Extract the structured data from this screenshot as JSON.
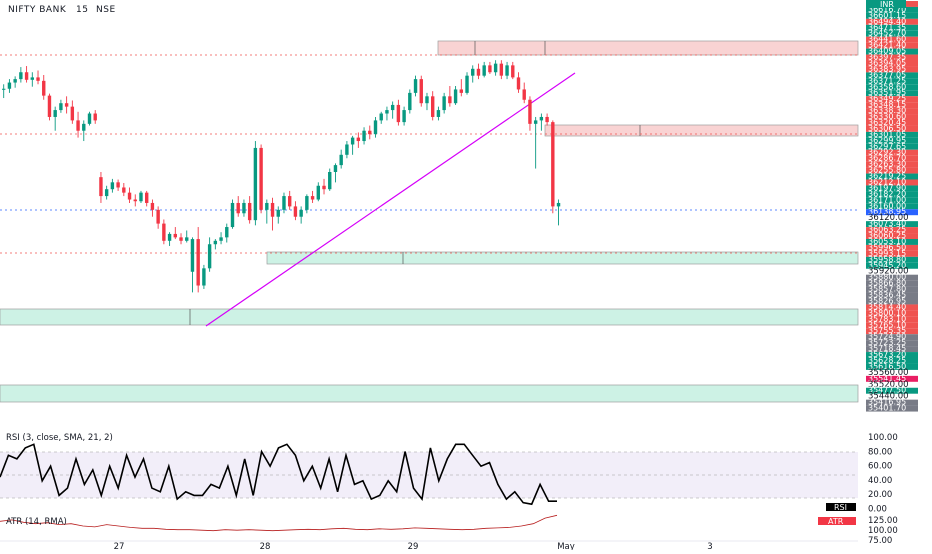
{
  "header": {
    "symbol": "NIFTY BANK",
    "interval": "15",
    "exchange": "NSE"
  },
  "chart_data": {
    "type": "candlestick",
    "price_range": [
      35400,
      36650
    ],
    "currency": "INR",
    "x_axis_labels": [
      "27",
      "28",
      "29",
      "May",
      "3"
    ],
    "candles": [
      [
        36389,
        36405,
        36365,
        36392
      ],
      [
        36392,
        36420,
        36380,
        36410
      ],
      [
        36410,
        36428,
        36395,
        36420
      ],
      [
        36420,
        36455,
        36410,
        36440
      ],
      [
        36440,
        36458,
        36410,
        36418
      ],
      [
        36418,
        36440,
        36398,
        36425
      ],
      [
        36425,
        36445,
        36405,
        36415
      ],
      [
        36415,
        36432,
        36360,
        36372
      ],
      [
        36372,
        36378,
        36300,
        36310
      ],
      [
        36310,
        36340,
        36270,
        36330
      ],
      [
        36330,
        36360,
        36322,
        36350
      ],
      [
        36350,
        36370,
        36320,
        36340
      ],
      [
        36340,
        36358,
        36290,
        36300
      ],
      [
        36300,
        36325,
        36250,
        36270
      ],
      [
        36270,
        36300,
        36240,
        36290
      ],
      [
        36290,
        36325,
        36285,
        36320
      ],
      [
        36320,
        36330,
        36290,
        36300
      ],
      [
        36135,
        36150,
        36060,
        36080
      ],
      [
        36080,
        36110,
        36070,
        36100
      ],
      [
        36100,
        36130,
        36090,
        36120
      ],
      [
        36120,
        36128,
        36095,
        36105
      ],
      [
        36105,
        36118,
        36080,
        36090
      ],
      [
        36090,
        36105,
        36060,
        36070
      ],
      [
        36070,
        36085,
        36050,
        36065
      ],
      [
        36065,
        36095,
        36060,
        36090
      ],
      [
        36090,
        36095,
        36050,
        36060
      ],
      [
        36060,
        36070,
        36020,
        36040
      ],
      [
        36040,
        36050,
        35985,
        36000
      ],
      [
        36000,
        36012,
        35940,
        35950
      ],
      [
        35950,
        35975,
        35935,
        35970
      ],
      [
        35970,
        35990,
        35955,
        35960
      ],
      [
        35960,
        35972,
        35940,
        35950
      ],
      [
        35950,
        35980,
        35945,
        35960
      ],
      [
        35860,
        35960,
        35800,
        35955
      ],
      [
        35955,
        35990,
        35800,
        35820
      ],
      [
        35820,
        35880,
        35810,
        35870
      ],
      [
        35870,
        35960,
        35860,
        35940
      ],
      [
        35940,
        35955,
        35925,
        35950
      ],
      [
        35950,
        35975,
        35940,
        35960
      ],
      [
        35960,
        36000,
        35945,
        35990
      ],
      [
        35990,
        36070,
        35985,
        36060
      ],
      [
        36060,
        36080,
        36020,
        36030
      ],
      [
        36030,
        36070,
        36020,
        36060
      ],
      [
        36060,
        36080,
        36000,
        36010
      ],
      [
        36010,
        36240,
        35995,
        36220
      ],
      [
        36220,
        36230,
        36030,
        36040
      ],
      [
        36040,
        36070,
        36000,
        36060
      ],
      [
        36060,
        36075,
        35980,
        36020
      ],
      [
        36020,
        36050,
        36000,
        36040
      ],
      [
        36040,
        36090,
        36030,
        36080
      ],
      [
        36080,
        36095,
        36040,
        36050
      ],
      [
        36050,
        36065,
        36010,
        36020
      ],
      [
        36020,
        36050,
        36000,
        36040
      ],
      [
        36040,
        36085,
        36030,
        36080
      ],
      [
        36080,
        36095,
        36060,
        36070
      ],
      [
        36070,
        36120,
        36065,
        36110
      ],
      [
        36110,
        36130,
        36085,
        36100
      ],
      [
        36100,
        36160,
        36095,
        36150
      ],
      [
        36150,
        36175,
        36120,
        36170
      ],
      [
        36170,
        36215,
        36160,
        36200
      ],
      [
        36200,
        36240,
        36190,
        36230
      ],
      [
        36230,
        36255,
        36200,
        36250
      ],
      [
        36250,
        36265,
        36220,
        36240
      ],
      [
        36240,
        36280,
        36230,
        36270
      ],
      [
        36270,
        36285,
        36245,
        36260
      ],
      [
        36260,
        36310,
        36250,
        36300
      ],
      [
        36300,
        36325,
        36290,
        36320
      ],
      [
        36320,
        36340,
        36300,
        36330
      ],
      [
        36330,
        36355,
        36305,
        36345
      ],
      [
        36345,
        36360,
        36285,
        36295
      ],
      [
        36295,
        36340,
        36285,
        36330
      ],
      [
        36330,
        36390,
        36320,
        36380
      ],
      [
        36380,
        36430,
        36370,
        36420
      ],
      [
        36420,
        36430,
        36340,
        36350
      ],
      [
        36350,
        36380,
        36330,
        36370
      ],
      [
        36370,
        36385,
        36300,
        36310
      ],
      [
        36310,
        36340,
        36300,
        36330
      ],
      [
        36330,
        36380,
        36320,
        36370
      ],
      [
        36370,
        36400,
        36340,
        36350
      ],
      [
        36350,
        36400,
        36345,
        36390
      ],
      [
        36390,
        36420,
        36370,
        36380
      ],
      [
        36380,
        36440,
        36375,
        36430
      ],
      [
        36430,
        36460,
        36410,
        36450
      ],
      [
        36450,
        36465,
        36420,
        36430
      ],
      [
        36430,
        36470,
        36425,
        36460
      ],
      [
        36460,
        36470,
        36435,
        36440
      ],
      [
        36440,
        36475,
        36430,
        36465
      ],
      [
        36465,
        36475,
        36420,
        36430
      ],
      [
        36430,
        36470,
        36420,
        36460
      ],
      [
        36460,
        36470,
        36420,
        36425
      ],
      [
        36425,
        36440,
        36380,
        36390
      ],
      [
        36390,
        36410,
        36350,
        36360
      ],
      [
        36360,
        36370,
        36270,
        36290
      ],
      [
        36290,
        36310,
        36160,
        36300
      ],
      [
        36300,
        36320,
        36270,
        36310
      ],
      [
        36310,
        36320,
        36285,
        36295
      ],
      [
        36295,
        36300,
        36030,
        36050
      ],
      [
        36050,
        36070,
        35995,
        36060
      ]
    ],
    "gap_after_index": 16,
    "price_labels": [
      {
        "text": "36626.25",
        "c": "#ef5350"
      },
      {
        "text": "36616.70",
        "c": "#089981"
      },
      {
        "text": "36601.15",
        "c": "#089981"
      },
      {
        "text": "36494.40",
        "c": "#ef5350"
      },
      {
        "text": "36471.35",
        "c": "#089981"
      },
      {
        "text": "36452.70",
        "c": "#089981"
      },
      {
        "text": "36441.60",
        "c": "#ef5350"
      },
      {
        "text": "36421.40",
        "c": "#ef5350"
      },
      {
        "text": "36409.05",
        "c": "#089981"
      },
      {
        "text": "36397.35",
        "c": "#ef5350"
      },
      {
        "text": "36394.05",
        "c": "#ef5350"
      },
      {
        "text": "36383.95",
        "c": "#ef5350"
      },
      {
        "text": "36377.05",
        "c": "#089981"
      },
      {
        "text": "36371.25",
        "c": "#089981"
      },
      {
        "text": "36358.60",
        "c": "#089981"
      },
      {
        "text": "36351.95",
        "c": "#089981"
      },
      {
        "text": "36349.25",
        "c": "#ef5350"
      },
      {
        "text": "36348.15",
        "c": "#ef5350"
      },
      {
        "text": "36338.30",
        "c": "#ef5350"
      },
      {
        "text": "36330.60",
        "c": "#ef5350"
      },
      {
        "text": "36320.45",
        "c": "#ef5350"
      },
      {
        "text": "36306.50",
        "c": "#ef5350"
      },
      {
        "text": "36301.05",
        "c": "#089981"
      },
      {
        "text": "36299.95",
        "c": "#089981"
      },
      {
        "text": "36297.65",
        "c": "#089981"
      },
      {
        "text": "36292.30",
        "c": "#ef5350"
      },
      {
        "text": "36286.70",
        "c": "#ef5350"
      },
      {
        "text": "36263.30",
        "c": "#ef5350"
      },
      {
        "text": "36255.80",
        "c": "#ef5350"
      },
      {
        "text": "36219.25",
        "c": "#089981"
      },
      {
        "text": "36212.10",
        "c": "#ef5350"
      },
      {
        "text": "36197.90",
        "c": "#089981"
      },
      {
        "text": "36182.20",
        "c": "#089981"
      },
      {
        "text": "36171.00",
        "c": "#089981"
      },
      {
        "text": "36160.00",
        "c": "#089981"
      },
      {
        "text": "36138.95",
        "c": "#2962ff"
      },
      {
        "text": "36120.00",
        "c": "#ffffff"
      },
      {
        "text": "36073.40",
        "c": "#089981"
      },
      {
        "text": "36063.25",
        "c": "#ef5350"
      },
      {
        "text": "36060.25",
        "c": "#ef5350"
      },
      {
        "text": "36053.10",
        "c": "#089981"
      },
      {
        "text": "35996.50",
        "c": "#ef5350"
      },
      {
        "text": "35993.15",
        "c": "#ef5350"
      },
      {
        "text": "35958.80",
        "c": "#089981"
      },
      {
        "text": "35945.20",
        "c": "#089981"
      },
      {
        "text": "35920.00",
        "c": "#ffffff"
      },
      {
        "text": "35880.00",
        "c": "#787b86"
      },
      {
        "text": "35866.80",
        "c": "#787b86"
      },
      {
        "text": "35857.80",
        "c": "#787b86"
      },
      {
        "text": "35836.45",
        "c": "#787b86"
      },
      {
        "text": "35826.95",
        "c": "#787b86"
      },
      {
        "text": "35814.40",
        "c": "#ef5350"
      },
      {
        "text": "35800.10",
        "c": "#ef5350"
      },
      {
        "text": "35783.10",
        "c": "#ef5350"
      },
      {
        "text": "35765.10",
        "c": "#ef5350"
      },
      {
        "text": "35755.35",
        "c": "#ef5350"
      },
      {
        "text": "35724.90",
        "c": "#787b86"
      },
      {
        "text": "35723.25",
        "c": "#787b86"
      },
      {
        "text": "35718.45",
        "c": "#787b86"
      },
      {
        "text": "35673.20",
        "c": "#089981"
      },
      {
        "text": "35628.25",
        "c": "#089981"
      },
      {
        "text": "35616.50",
        "c": "#089981"
      },
      {
        "text": "35560.00",
        "c": "#ffffff"
      },
      {
        "text": "35541.45",
        "c": "#e91e63"
      },
      {
        "text": "35520.00",
        "c": "#ffffff"
      },
      {
        "text": "35477.50",
        "c": "#089981"
      },
      {
        "text": "35440.00",
        "c": "#ffffff"
      },
      {
        "text": "35416.95",
        "c": "#787b86"
      },
      {
        "text": "35401.70",
        "c": "#787b86"
      }
    ],
    "rsi": {
      "label": "RSI (3, close, SMA, 21, 2)",
      "axis": [
        "100.00",
        "80.00",
        "60.00",
        "40.00",
        "20.00",
        "0.00"
      ],
      "tag": "RSI",
      "values": [
        45,
        75,
        70,
        85,
        90,
        40,
        60,
        20,
        30,
        70,
        35,
        55,
        20,
        60,
        30,
        75,
        45,
        70,
        30,
        25,
        60,
        15,
        25,
        20,
        20,
        35,
        30,
        60,
        20,
        70,
        20,
        80,
        60,
        85,
        90,
        75,
        40,
        60,
        30,
        70,
        25,
        75,
        35,
        40,
        15,
        20,
        40,
        25,
        80,
        30,
        15,
        85,
        40,
        70,
        90,
        90,
        75,
        60,
        65,
        35,
        15,
        25,
        10,
        8,
        35,
        12,
        12
      ]
    },
    "atr": {
      "label": "ATR (14, RMA)",
      "axis": [
        "125.00",
        "100.00",
        "75.00"
      ],
      "tag": "ATR",
      "values": [
        115,
        118,
        113,
        110,
        112,
        108,
        110,
        105,
        103,
        108,
        105,
        102,
        100,
        100,
        98,
        97,
        97,
        96,
        95,
        97,
        96,
        97,
        96,
        95,
        96,
        97,
        98,
        97,
        99,
        100,
        98,
        97,
        99,
        98,
        99,
        101,
        100,
        99,
        98,
        97,
        98,
        100,
        101,
        102,
        105,
        110,
        122,
        128
      ]
    }
  }
}
